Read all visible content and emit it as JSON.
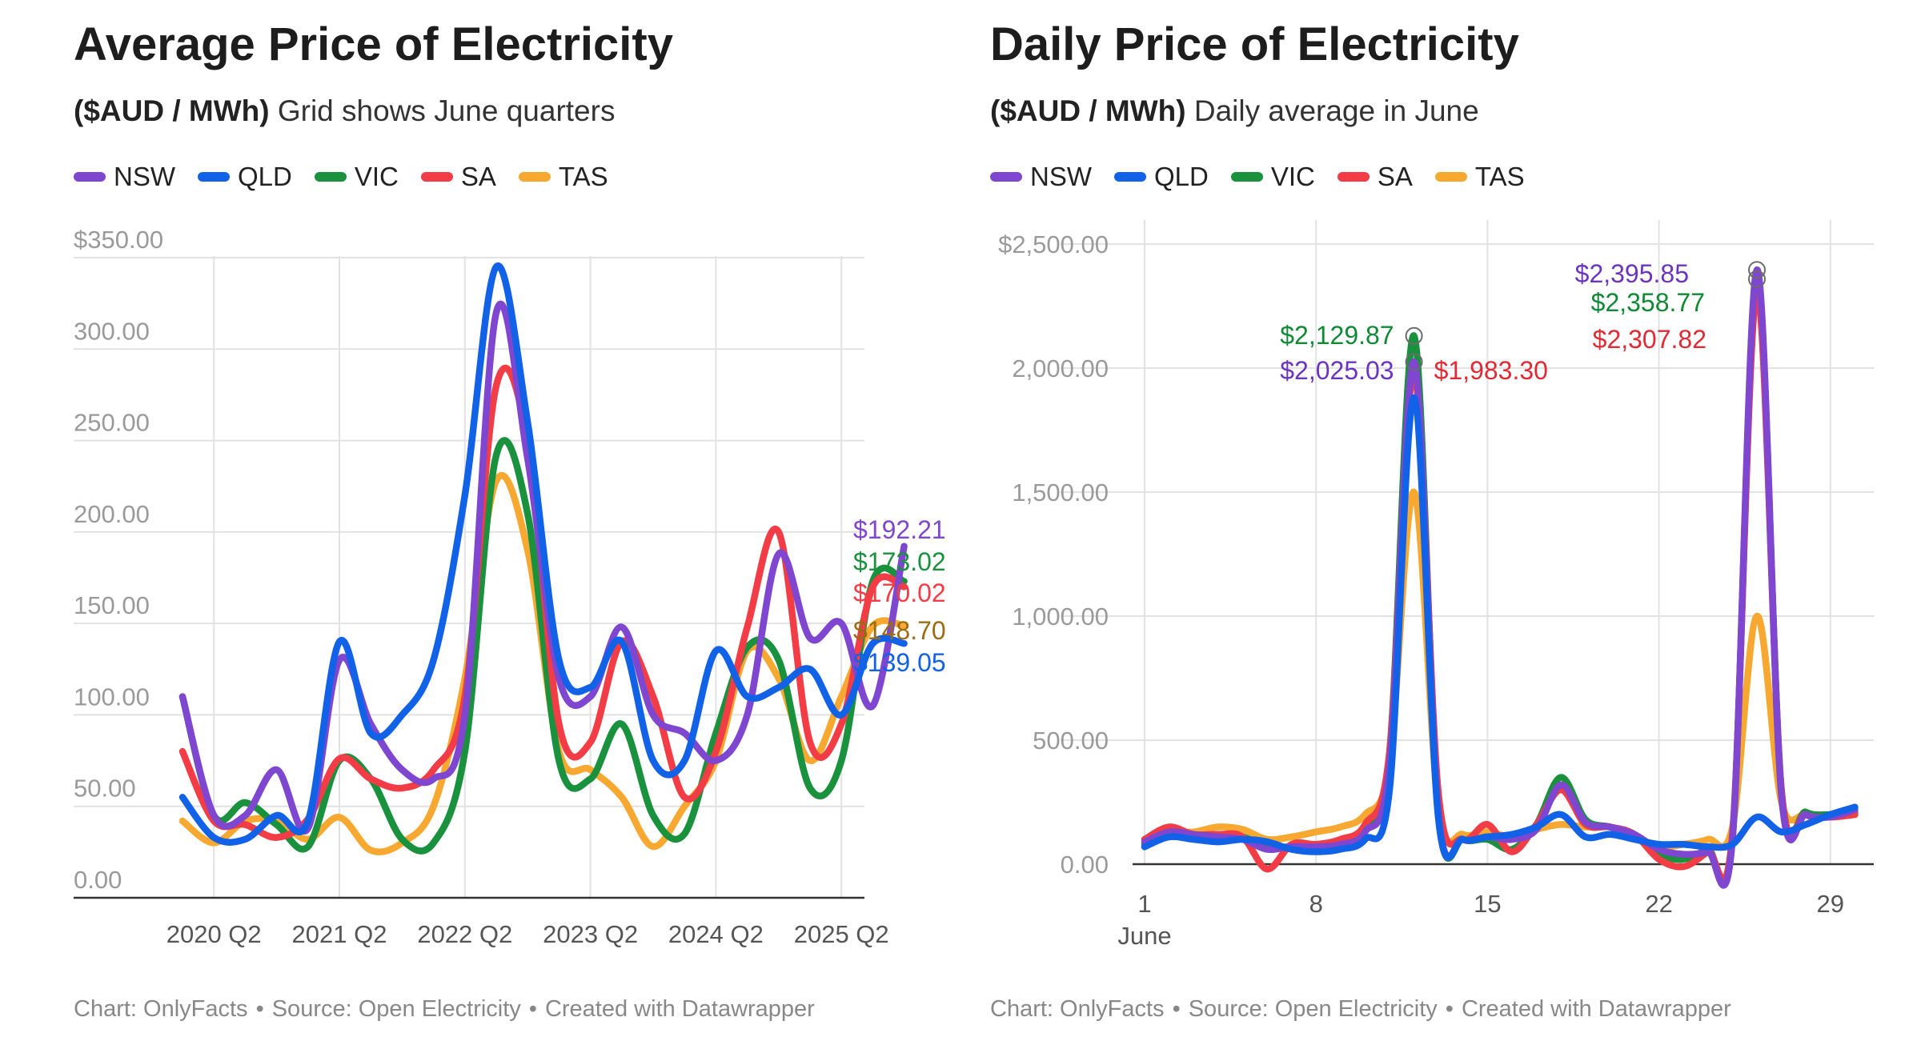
{
  "colors": {
    "NSW": "#7f46d0",
    "QLD": "#1262e8",
    "VIC": "#19913d",
    "SA": "#f23c46",
    "TAS": "#f7a830"
  },
  "footer": {
    "chart": "Chart: OnlyFacts",
    "source": "Source: Open Electricity",
    "created": "Created with Datawrapper",
    "separator": "•"
  },
  "chart_data": [
    {
      "type": "line",
      "title": "Average Price of Electricity",
      "subtitle_bold": "($AUD / MWh)",
      "subtitle_rest": "Grid shows June quarters",
      "legend": [
        "NSW",
        "QLD",
        "VIC",
        "SA",
        "TAS"
      ],
      "x_ticks": [
        "2020 Q2",
        "2021 Q2",
        "2022 Q2",
        "2023 Q2",
        "2024 Q2",
        "2025 Q2"
      ],
      "y_ticks": [
        "$350.00",
        "300.00",
        "250.00",
        "200.00",
        "150.00",
        "100.00",
        "50.00",
        "0.00"
      ],
      "y_tick_values": [
        350,
        300,
        250,
        200,
        150,
        100,
        50,
        0
      ],
      "ylim": [
        0,
        350
      ],
      "x_start_quarter": "2020 Q1",
      "series": [
        {
          "name": "NSW",
          "values": [
            110,
            45,
            45,
            70,
            38,
            130,
            95,
            70,
            65,
            100,
            320,
            240,
            120,
            110,
            148,
            100,
            90,
            75,
            100,
            188,
            142,
            150,
            105,
            192.21
          ]
        },
        {
          "name": "QLD",
          "values": [
            55,
            33,
            32,
            45,
            42,
            140,
            90,
            100,
            130,
            220,
            345,
            260,
            130,
            115,
            140,
            75,
            75,
            135,
            110,
            115,
            125,
            100,
            139.05,
            139.05
          ]
        },
        {
          "name": "VIC",
          "values": [
            110,
            45,
            52,
            40,
            28,
            75,
            65,
            32,
            30,
            80,
            242,
            210,
            75,
            65,
            95,
            45,
            35,
            90,
            137,
            130,
            60,
            75,
            173.02,
            173.02
          ]
        },
        {
          "name": "SA",
          "values": [
            80,
            42,
            40,
            33,
            43,
            76,
            65,
            60,
            70,
            110,
            280,
            250,
            95,
            85,
            140,
            110,
            55,
            80,
            148,
            200,
            85,
            95,
            170.02,
            170.02
          ]
        },
        {
          "name": "TAS",
          "values": [
            42,
            30,
            42,
            42,
            32,
            44,
            26,
            30,
            50,
            120,
            228,
            190,
            80,
            70,
            55,
            28,
            50,
            75,
            135,
            120,
            75,
            110,
            148.7,
            148.7
          ]
        }
      ],
      "end_labels": [
        {
          "series": "NSW",
          "text": "$192.21"
        },
        {
          "series": "VIC",
          "text": "$173.02"
        },
        {
          "series": "SA",
          "text": "$170.02"
        },
        {
          "series": "TAS",
          "text": "$148.70"
        },
        {
          "series": "QLD",
          "text": "$139.05"
        }
      ],
      "grid": true
    },
    {
      "type": "line",
      "title": "Daily Price of Electricity",
      "subtitle_bold": "($AUD / MWh)",
      "subtitle_rest": "Daily average in June",
      "legend": [
        "NSW",
        "QLD",
        "VIC",
        "SA",
        "TAS"
      ],
      "x_ticks": [
        "1",
        "8",
        "15",
        "22",
        "29"
      ],
      "x_tick_values": [
        1,
        8,
        15,
        22,
        29
      ],
      "x_sub_label": "June",
      "y_ticks": [
        "$2,500.00",
        "2,000.00",
        "1,500.00",
        "1,000.00",
        "500.00",
        "0.00"
      ],
      "y_tick_values": [
        2500,
        2000,
        1500,
        1000,
        500,
        0
      ],
      "ylim": [
        0,
        2500
      ],
      "x": [
        1,
        2,
        3,
        4,
        5,
        6,
        7,
        8,
        9,
        10,
        11,
        12,
        13,
        14,
        15,
        16,
        17,
        18,
        19,
        20,
        21,
        22,
        23,
        24,
        25,
        26,
        27,
        28,
        29,
        30
      ],
      "series": [
        {
          "name": "NSW",
          "values": [
            90,
            130,
            120,
            110,
            100,
            60,
            70,
            70,
            80,
            130,
            400,
            2025.03,
            200,
            100,
            110,
            100,
            140,
            320,
            170,
            150,
            120,
            60,
            40,
            50,
            100,
            2395.85,
            280,
            200,
            190,
            220
          ]
        },
        {
          "name": "QLD",
          "values": [
            70,
            110,
            100,
            90,
            100,
            90,
            60,
            50,
            60,
            100,
            300,
            1880,
            180,
            100,
            110,
            120,
            150,
            200,
            110,
            120,
            100,
            80,
            80,
            70,
            80,
            190,
            130,
            160,
            200,
            230
          ]
        },
        {
          "name": "VIC",
          "values": [
            80,
            120,
            110,
            120,
            110,
            70,
            70,
            70,
            90,
            150,
            450,
            2129.87,
            200,
            100,
            100,
            60,
            160,
            350,
            180,
            150,
            120,
            40,
            20,
            60,
            100,
            2358.77,
            300,
            210,
            200,
            210
          ]
        },
        {
          "name": "SA",
          "values": [
            100,
            150,
            120,
            120,
            110,
            -20,
            80,
            80,
            100,
            160,
            450,
            1983.3,
            280,
            100,
            160,
            50,
            160,
            300,
            160,
            150,
            120,
            20,
            -10,
            50,
            120,
            2307.82,
            300,
            200,
            190,
            200
          ]
        },
        {
          "name": "TAS",
          "values": [
            100,
            130,
            130,
            150,
            140,
            100,
            110,
            130,
            150,
            200,
            400,
            1500,
            220,
            120,
            130,
            110,
            140,
            160,
            150,
            150,
            110,
            70,
            80,
            100,
            150,
            1000,
            250,
            200,
            190,
            200
          ]
        }
      ],
      "annotations": [
        {
          "series": "VIC",
          "text": "$2,129.87"
        },
        {
          "series": "NSW",
          "text": "$2,025.03"
        },
        {
          "series": "SA",
          "text": "$1,983.30"
        },
        {
          "series": "NSW",
          "text": "$2,395.85"
        },
        {
          "series": "VIC",
          "text": "$2,358.77"
        },
        {
          "series": "SA",
          "text": "$2,307.82"
        }
      ],
      "grid": true
    }
  ]
}
